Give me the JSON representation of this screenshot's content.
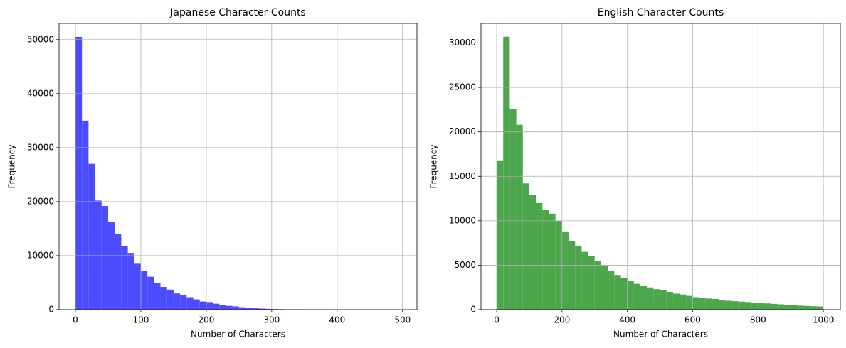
{
  "chart_data": [
    {
      "type": "histogram",
      "title": "Japanese Character Counts",
      "xlabel": "Number of Characters",
      "ylabel": "Frequency",
      "bins": [
        0,
        10,
        20,
        30,
        40,
        50,
        60,
        70,
        80,
        90,
        100,
        110,
        120,
        130,
        140,
        150,
        160,
        170,
        180,
        190,
        200,
        210,
        220,
        230,
        240,
        250,
        260,
        270,
        280,
        290,
        300,
        310,
        320,
        330,
        340,
        350,
        360,
        370,
        380,
        390,
        400,
        410,
        420,
        430,
        440,
        450,
        460,
        470,
        480,
        490,
        500
      ],
      "values": [
        50500,
        35000,
        27000,
        20200,
        19200,
        16200,
        14000,
        11700,
        10500,
        8500,
        7100,
        6100,
        5000,
        4200,
        3700,
        3000,
        2700,
        2300,
        1900,
        1500,
        1400,
        1100,
        900,
        700,
        600,
        450,
        350,
        250,
        200,
        150,
        120,
        90,
        60,
        40,
        30,
        20,
        15,
        10,
        8,
        6,
        5,
        4,
        3,
        2,
        2,
        1,
        1,
        1,
        1,
        1
      ],
      "color": "#4b4bff",
      "xlim": [
        -25,
        522
      ],
      "ylim": [
        0,
        53000
      ],
      "xticks": [
        0,
        100,
        200,
        300,
        400,
        500
      ],
      "yticks": [
        0,
        10000,
        20000,
        30000,
        40000,
        50000
      ],
      "grid": true
    },
    {
      "type": "histogram",
      "title": "English Character Counts",
      "xlabel": "Number of Characters",
      "ylabel": "Frequency",
      "bins": [
        0,
        20,
        40,
        60,
        80,
        100,
        120,
        140,
        160,
        180,
        200,
        220,
        240,
        260,
        280,
        300,
        320,
        340,
        360,
        380,
        400,
        420,
        440,
        460,
        480,
        500,
        520,
        540,
        560,
        580,
        600,
        620,
        640,
        660,
        680,
        700,
        720,
        740,
        760,
        780,
        800,
        820,
        840,
        860,
        880,
        900,
        920,
        940,
        960,
        980,
        1000
      ],
      "values": [
        16800,
        30700,
        22600,
        20800,
        14200,
        12900,
        12000,
        11200,
        10800,
        10000,
        8800,
        7700,
        7200,
        6500,
        6000,
        5500,
        5000,
        4400,
        3900,
        3600,
        3200,
        2900,
        2700,
        2500,
        2300,
        2200,
        2000,
        1800,
        1700,
        1550,
        1400,
        1300,
        1250,
        1200,
        1100,
        1000,
        950,
        900,
        850,
        800,
        750,
        700,
        650,
        600,
        550,
        500,
        450,
        420,
        380,
        350
      ],
      "color": "#4ca64c",
      "xlim": [
        -48,
        1052
      ],
      "ylim": [
        0,
        32200
      ],
      "xticks": [
        0,
        200,
        400,
        600,
        800,
        1000
      ],
      "yticks": [
        0,
        5000,
        10000,
        15000,
        20000,
        25000,
        30000
      ],
      "grid": true
    }
  ]
}
